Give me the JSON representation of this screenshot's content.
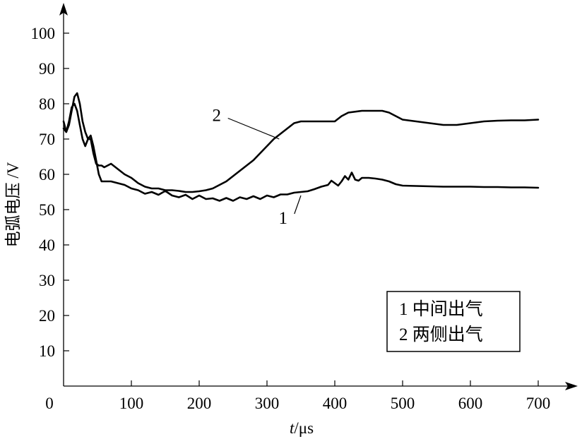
{
  "chart_data": {
    "type": "line",
    "xlabel": "t/μs",
    "xlabel_italic_part": "t",
    "xlabel_rest": "/μs",
    "ylabel": "电弧电压 /V",
    "xlim": [
      0,
      760
    ],
    "ylim": [
      0,
      110
    ],
    "x_ticks": [
      0,
      100,
      200,
      300,
      400,
      500,
      600,
      700
    ],
    "x_tick_labels": [
      "0",
      "100",
      "200",
      "300",
      "400",
      "500",
      "600",
      "700"
    ],
    "y_ticks": [
      10,
      20,
      30,
      40,
      50,
      60,
      70,
      80,
      90,
      100
    ],
    "y_tick_labels": [
      "10",
      "20",
      "30",
      "40",
      "50",
      "60",
      "70",
      "80",
      "90",
      "100"
    ],
    "legend_position": "bottom-right",
    "legend": [
      "1 中间出气",
      "2 两侧出气"
    ],
    "series": [
      {
        "name": "1",
        "label": "1",
        "label_at": [
          330,
          46
        ],
        "leader_to": [
          350,
          54
        ],
        "x": [
          0,
          4,
          8,
          12,
          16,
          20,
          24,
          28,
          32,
          36,
          40,
          44,
          48,
          52,
          56,
          60,
          70,
          80,
          90,
          100,
          110,
          120,
          130,
          140,
          150,
          160,
          170,
          180,
          190,
          200,
          210,
          220,
          230,
          240,
          250,
          260,
          270,
          280,
          290,
          300,
          310,
          320,
          330,
          340,
          350,
          360,
          370,
          380,
          390,
          395,
          400,
          405,
          410,
          415,
          420,
          425,
          430,
          435,
          440,
          450,
          460,
          470,
          480,
          490,
          500,
          520,
          540,
          560,
          580,
          600,
          620,
          640,
          660,
          680,
          700
        ],
        "y": [
          73,
          72,
          75,
          79,
          80,
          78,
          74,
          70,
          68,
          70,
          71,
          68,
          64,
          60,
          58,
          58,
          58,
          57.5,
          57,
          56,
          55.5,
          54.5,
          55,
          54.2,
          55.3,
          54,
          53.5,
          54.2,
          53,
          54,
          53,
          53.2,
          52.5,
          53.3,
          52.5,
          53.5,
          53,
          53.8,
          53,
          54,
          53.5,
          54.3,
          54.3,
          54.8,
          55,
          55.2,
          55.8,
          56.5,
          57,
          58.2,
          57.5,
          56.8,
          58,
          59.5,
          58.5,
          60.5,
          58.5,
          58.2,
          59,
          59,
          58.8,
          58.5,
          58,
          57.2,
          56.8,
          56.7,
          56.6,
          56.5,
          56.5,
          56.5,
          56.4,
          56.4,
          56.3,
          56.3,
          56.2
        ]
      },
      {
        "name": "2",
        "label": "2",
        "label_at": [
          232,
          75.5
        ],
        "leader_to": [
          318,
          70
        ],
        "x": [
          0,
          4,
          8,
          12,
          16,
          20,
          24,
          28,
          32,
          36,
          40,
          44,
          48,
          52,
          56,
          60,
          70,
          80,
          90,
          100,
          110,
          120,
          130,
          140,
          150,
          160,
          170,
          180,
          190,
          200,
          210,
          220,
          230,
          240,
          250,
          260,
          270,
          280,
          290,
          300,
          310,
          320,
          330,
          340,
          350,
          355,
          360,
          380,
          400,
          410,
          420,
          440,
          460,
          470,
          480,
          490,
          500,
          520,
          540,
          560,
          580,
          600,
          620,
          640,
          660,
          680,
          700
        ],
        "y": [
          75,
          72,
          74,
          78,
          82,
          83,
          80,
          75,
          72,
          70,
          70,
          66,
          63,
          62.5,
          62.5,
          62,
          63,
          61.5,
          60,
          59,
          57.5,
          56.5,
          56,
          56,
          55.5,
          55.5,
          55.3,
          55,
          55,
          55.2,
          55.5,
          56,
          57,
          58,
          59.5,
          61,
          62.5,
          64,
          66,
          68,
          70,
          71.5,
          73,
          74.5,
          75,
          75,
          75,
          75,
          75,
          76.5,
          77.5,
          78,
          78,
          78,
          77.5,
          76.5,
          75.5,
          75,
          74.5,
          74,
          74,
          74.5,
          75,
          75.2,
          75.3,
          75.3,
          75.5
        ]
      }
    ]
  }
}
